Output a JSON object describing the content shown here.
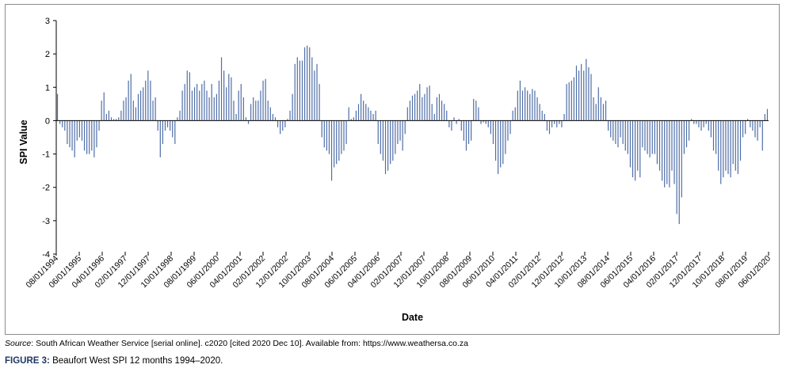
{
  "chart_data": {
    "type": "bar",
    "xlabel": "Date",
    "ylabel": "SPI Value",
    "ylim": [
      -4,
      3
    ],
    "yticks": [
      3,
      2,
      1,
      0,
      -1,
      -2,
      -3,
      -4
    ],
    "xtick_labels": [
      "08/01/1994",
      "06/01/1995",
      "04/01/1996",
      "02/01/1997",
      "12/01/1997",
      "10/01/1998",
      "08/01/1999",
      "06/01/2000",
      "04/01/2001",
      "02/01/2002",
      "12/01/2002",
      "10/01/2003",
      "08/01/2004",
      "06/01/2005",
      "04/01/2006",
      "02/01/2007",
      "12/01/2007",
      "10/01/2008",
      "08/01/2009",
      "06/01/2010",
      "04/01/2011",
      "02/01/2012",
      "12/01/2012",
      "10/01/2013",
      "08/01/2014",
      "06/01/2015",
      "04/01/2016",
      "02/01/2017",
      "12/01/2017",
      "10/01/2018",
      "08/01/2019",
      "06/01/2020"
    ],
    "bar_color": "#4f6ea8",
    "grid": false,
    "series": [
      {
        "values": [
          0.8,
          -0.1,
          -0.2,
          -0.3,
          -0.7,
          -0.8,
          -0.9,
          -1.1,
          -0.6,
          -0.5,
          -0.6,
          -0.9,
          -1.0,
          -1.0,
          -0.9,
          -1.1,
          -0.8,
          -0.3,
          0.6,
          0.85,
          0.2,
          0.3,
          0.1,
          0.05,
          0.05,
          0.1,
          0.3,
          0.6,
          0.7,
          1.2,
          1.4,
          0.6,
          0.4,
          0.8,
          0.9,
          1.0,
          1.2,
          1.5,
          1.2,
          0.6,
          0.7,
          -0.3,
          -1.1,
          -0.7,
          -0.3,
          -0.2,
          -0.3,
          -0.5,
          -0.7,
          0.1,
          0.3,
          0.9,
          1.1,
          1.5,
          1.45,
          0.9,
          1.0,
          1.1,
          0.9,
          1.1,
          1.2,
          0.9,
          0.7,
          1.1,
          0.7,
          0.8,
          1.2,
          1.9,
          1.5,
          1.0,
          1.4,
          1.3,
          0.6,
          0.2,
          0.9,
          1.1,
          0.7,
          0.1,
          -0.1,
          0.5,
          0.7,
          0.6,
          0.6,
          0.9,
          1.2,
          1.25,
          0.6,
          0.4,
          0.2,
          0.1,
          -0.2,
          -0.4,
          -0.3,
          -0.2,
          0.05,
          0.3,
          0.8,
          1.7,
          1.9,
          1.8,
          1.8,
          2.2,
          2.25,
          2.2,
          1.9,
          1.5,
          1.7,
          1.1,
          -0.5,
          -0.8,
          -0.9,
          -1.0,
          -1.8,
          -1.4,
          -1.3,
          -1.2,
          -1.0,
          -0.9,
          -0.7,
          0.4,
          0.05,
          0.1,
          0.3,
          0.5,
          0.8,
          0.6,
          0.5,
          0.4,
          0.3,
          0.2,
          0.3,
          -0.7,
          -1.0,
          -1.2,
          -1.6,
          -1.5,
          -1.3,
          -1.2,
          -1.0,
          -0.7,
          -0.6,
          -0.9,
          -0.4,
          0.4,
          0.6,
          0.75,
          0.8,
          0.9,
          1.1,
          0.7,
          0.8,
          1.0,
          1.05,
          0.5,
          0.2,
          0.7,
          0.8,
          0.6,
          0.5,
          0.3,
          -0.2,
          -0.3,
          0.1,
          -0.1,
          0.05,
          -0.3,
          -0.6,
          -0.9,
          -0.7,
          -0.6,
          0.65,
          0.6,
          0.4,
          -0.1,
          -0.05,
          -0.1,
          -0.2,
          -0.4,
          -0.7,
          -1.2,
          -1.6,
          -1.4,
          -1.3,
          -1.0,
          -0.6,
          -0.4,
          0.3,
          0.4,
          0.9,
          1.2,
          0.9,
          1.0,
          0.9,
          0.8,
          0.95,
          0.9,
          0.7,
          0.5,
          0.3,
          0.2,
          -0.3,
          -0.4,
          -0.2,
          -0.1,
          -0.2,
          -0.1,
          -0.2,
          0.2,
          1.1,
          1.15,
          1.2,
          1.3,
          1.65,
          1.5,
          1.7,
          1.5,
          1.85,
          1.6,
          1.4,
          0.7,
          0.5,
          1.0,
          0.7,
          0.5,
          0.6,
          -0.3,
          -0.5,
          -0.6,
          -0.7,
          -0.8,
          -0.5,
          -0.7,
          -0.9,
          -1.0,
          -1.4,
          -1.7,
          -1.8,
          -1.5,
          -1.7,
          -0.8,
          -0.9,
          -1.0,
          -1.1,
          -1.0,
          -1.0,
          -1.3,
          -1.5,
          -1.8,
          -2.0,
          -1.9,
          -2.0,
          -1.5,
          -1.9,
          -2.8,
          -3.1,
          -2.3,
          -1.0,
          -0.8,
          -0.6,
          0.05,
          -0.1,
          -0.1,
          -0.2,
          -0.3,
          -0.2,
          -0.1,
          -0.3,
          -0.5,
          -0.9,
          -1.0,
          -1.5,
          -1.9,
          -1.7,
          -1.5,
          -1.6,
          -1.7,
          -1.3,
          -1.5,
          -1.6,
          -1.2,
          -0.5,
          -0.4,
          0.05,
          -0.2,
          -0.3,
          -0.5,
          -0.6,
          -0.2,
          -0.9,
          0.2,
          0.35
        ]
      }
    ]
  },
  "footer": {
    "source_label": "Source",
    "source_text": ": South African Weather Service [serial online]. c2020 [cited 2020 Dec 10]. Available from: https://www.weathersa.co.za",
    "figure_number": "FIGURE 3:",
    "figure_title": " Beaufort West SPI 12 months 1994–2020."
  }
}
